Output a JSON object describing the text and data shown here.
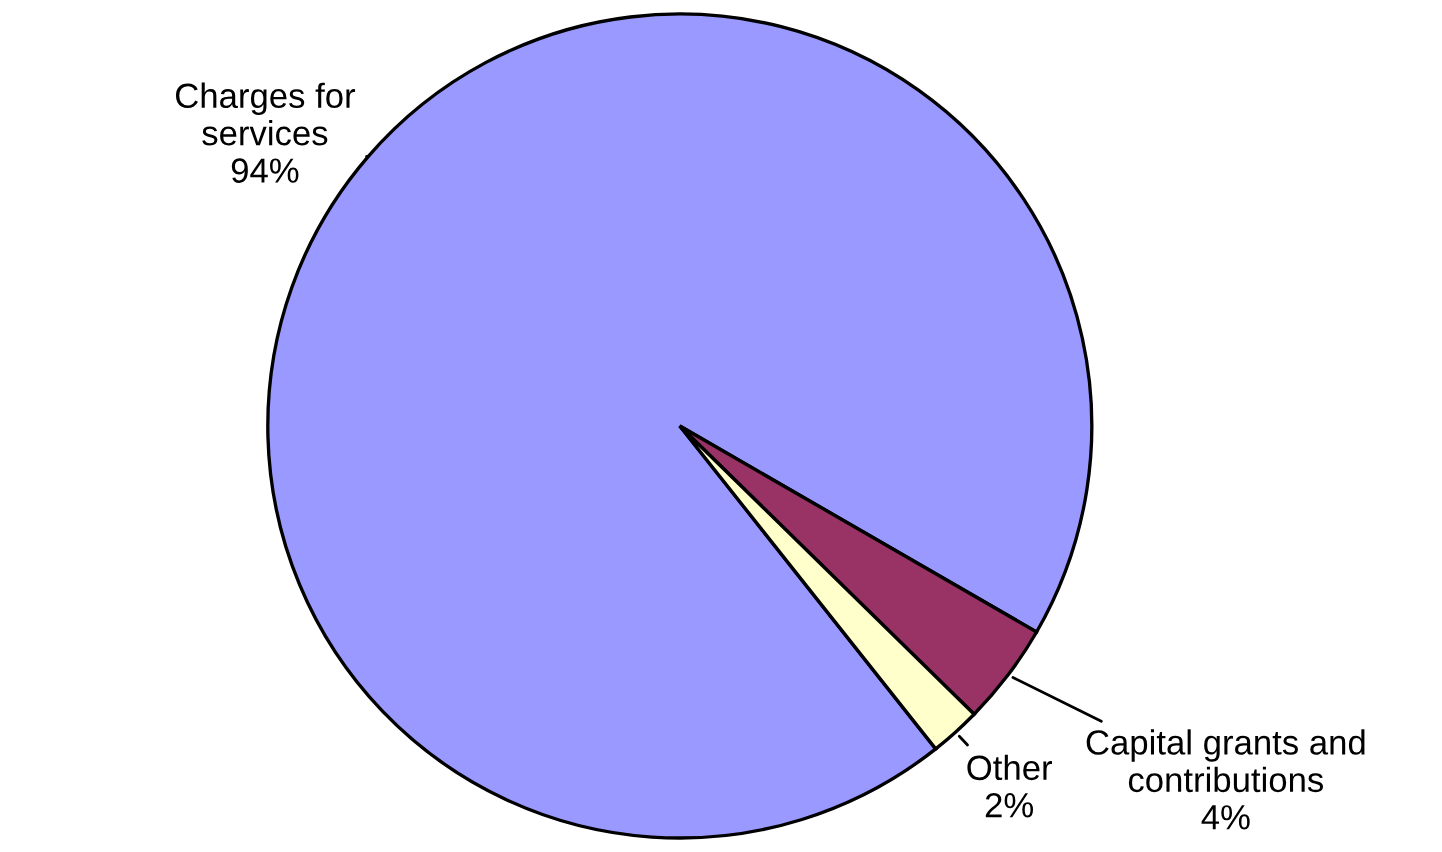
{
  "chart_data": {
    "type": "pie",
    "categories": [
      "Charges for\nservices\n94%",
      "Capital grants and\ncontributions\n4%",
      "Other\n2%"
    ],
    "values": [
      94,
      4,
      2
    ],
    "colors": [
      "#9999ff",
      "#993366",
      "#ffffcc"
    ]
  }
}
